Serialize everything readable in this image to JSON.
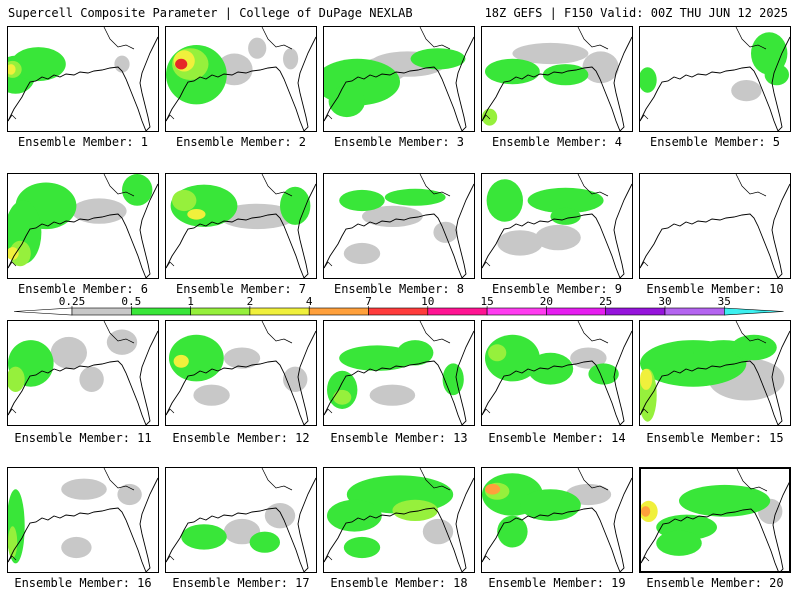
{
  "header": {
    "left": "Supercell Composite Parameter | College of DuPage NEXLAB",
    "right": "18Z GEFS | F150 Valid: 00Z THU JUN 12 2025"
  },
  "caption_prefix": "Ensemble Member:",
  "members": [
    {
      "label": "Ensemble Member: 1",
      "blobs": [
        [
          0.05,
          0.45,
          0.13,
          0.18,
          1
        ],
        [
          0.2,
          0.35,
          0.18,
          0.16,
          1
        ],
        [
          0.03,
          0.4,
          0.06,
          0.08,
          2
        ],
        [
          0.02,
          0.4,
          0.03,
          0.05,
          3
        ],
        [
          0.75,
          0.35,
          0.05,
          0.08,
          0
        ]
      ]
    },
    {
      "label": "Ensemble Member: 2",
      "blobs": [
        [
          0.2,
          0.45,
          0.2,
          0.28,
          1
        ],
        [
          0.45,
          0.4,
          0.12,
          0.15,
          0
        ],
        [
          0.16,
          0.35,
          0.12,
          0.15,
          2
        ],
        [
          0.12,
          0.32,
          0.07,
          0.1,
          3
        ],
        [
          0.1,
          0.35,
          0.04,
          0.05,
          5
        ],
        [
          0.6,
          0.2,
          0.06,
          0.1,
          0
        ],
        [
          0.82,
          0.3,
          0.05,
          0.1,
          0
        ]
      ]
    },
    {
      "label": "Ensemble Member: 3",
      "blobs": [
        [
          0.22,
          0.52,
          0.28,
          0.22,
          1
        ],
        [
          0.55,
          0.35,
          0.25,
          0.12,
          0
        ],
        [
          0.75,
          0.3,
          0.18,
          0.1,
          1
        ],
        [
          0.15,
          0.7,
          0.12,
          0.15,
          1
        ],
        [
          0.4,
          0.4,
          0.15,
          0.12,
          0
        ]
      ]
    },
    {
      "label": "Ensemble Member: 4",
      "blobs": [
        [
          0.2,
          0.42,
          0.18,
          0.12,
          1
        ],
        [
          0.55,
          0.45,
          0.15,
          0.1,
          1
        ],
        [
          0.78,
          0.38,
          0.12,
          0.15,
          0
        ],
        [
          0.05,
          0.85,
          0.05,
          0.08,
          2
        ],
        [
          0.45,
          0.25,
          0.25,
          0.1,
          0
        ]
      ]
    },
    {
      "label": "Ensemble Member: 5",
      "blobs": [
        [
          0.85,
          0.25,
          0.12,
          0.2,
          1
        ],
        [
          0.9,
          0.45,
          0.08,
          0.1,
          1
        ],
        [
          0.05,
          0.5,
          0.06,
          0.12,
          1
        ],
        [
          0.7,
          0.6,
          0.1,
          0.1,
          0
        ]
      ]
    },
    {
      "label": "Ensemble Member: 6",
      "blobs": [
        [
          0.25,
          0.3,
          0.2,
          0.22,
          1
        ],
        [
          0.1,
          0.55,
          0.12,
          0.3,
          1
        ],
        [
          0.08,
          0.75,
          0.07,
          0.12,
          2
        ],
        [
          0.03,
          0.75,
          0.04,
          0.06,
          3
        ],
        [
          0.6,
          0.35,
          0.18,
          0.12,
          0
        ],
        [
          0.85,
          0.15,
          0.1,
          0.15,
          1
        ]
      ]
    },
    {
      "label": "Ensemble Member: 7",
      "blobs": [
        [
          0.25,
          0.3,
          0.22,
          0.2,
          1
        ],
        [
          0.12,
          0.25,
          0.08,
          0.1,
          2
        ],
        [
          0.2,
          0.38,
          0.06,
          0.05,
          3
        ],
        [
          0.6,
          0.4,
          0.25,
          0.12,
          0
        ],
        [
          0.85,
          0.3,
          0.1,
          0.18,
          1
        ]
      ]
    },
    {
      "label": "Ensemble Member: 8",
      "blobs": [
        [
          0.25,
          0.25,
          0.15,
          0.1,
          1
        ],
        [
          0.6,
          0.22,
          0.2,
          0.08,
          1
        ],
        [
          0.45,
          0.4,
          0.2,
          0.1,
          0
        ],
        [
          0.25,
          0.75,
          0.12,
          0.1,
          0
        ],
        [
          0.8,
          0.55,
          0.08,
          0.1,
          0
        ]
      ]
    },
    {
      "label": "Ensemble Member: 9",
      "blobs": [
        [
          0.15,
          0.25,
          0.12,
          0.2,
          1
        ],
        [
          0.55,
          0.25,
          0.25,
          0.12,
          1
        ],
        [
          0.5,
          0.6,
          0.15,
          0.12,
          0
        ],
        [
          0.25,
          0.65,
          0.15,
          0.12,
          0
        ],
        [
          0.55,
          0.4,
          0.1,
          0.08,
          1
        ]
      ]
    },
    {
      "label": "Ensemble Member: 10",
      "blobs": []
    },
    {
      "label": "Ensemble Member: 11",
      "blobs": [
        [
          0.15,
          0.4,
          0.15,
          0.22,
          1
        ],
        [
          0.05,
          0.55,
          0.06,
          0.12,
          2
        ],
        [
          0.4,
          0.3,
          0.12,
          0.15,
          0
        ],
        [
          0.55,
          0.55,
          0.08,
          0.12,
          0
        ],
        [
          0.75,
          0.2,
          0.1,
          0.12,
          0
        ]
      ]
    },
    {
      "label": "Ensemble Member: 12",
      "blobs": [
        [
          0.2,
          0.35,
          0.18,
          0.22,
          1
        ],
        [
          0.1,
          0.38,
          0.05,
          0.06,
          3
        ],
        [
          0.5,
          0.35,
          0.12,
          0.1,
          0
        ],
        [
          0.3,
          0.7,
          0.12,
          0.1,
          0
        ],
        [
          0.85,
          0.55,
          0.08,
          0.12,
          0
        ]
      ]
    },
    {
      "label": "Ensemble Member: 13",
      "blobs": [
        [
          0.35,
          0.35,
          0.25,
          0.12,
          1
        ],
        [
          0.6,
          0.3,
          0.12,
          0.12,
          1
        ],
        [
          0.12,
          0.65,
          0.1,
          0.18,
          1
        ],
        [
          0.12,
          0.72,
          0.06,
          0.07,
          2
        ],
        [
          0.85,
          0.55,
          0.07,
          0.15,
          1
        ],
        [
          0.45,
          0.7,
          0.15,
          0.1,
          0
        ]
      ]
    },
    {
      "label": "Ensemble Member: 14",
      "blobs": [
        [
          0.2,
          0.35,
          0.18,
          0.22,
          1
        ],
        [
          0.45,
          0.45,
          0.15,
          0.15,
          1
        ],
        [
          0.1,
          0.3,
          0.06,
          0.08,
          2
        ],
        [
          0.7,
          0.35,
          0.12,
          0.1,
          0
        ],
        [
          0.8,
          0.5,
          0.1,
          0.1,
          1
        ]
      ]
    },
    {
      "label": "Ensemble Member: 15",
      "blobs": [
        [
          0.35,
          0.4,
          0.35,
          0.22,
          1
        ],
        [
          0.05,
          0.7,
          0.06,
          0.25,
          2
        ],
        [
          0.04,
          0.55,
          0.04,
          0.1,
          3
        ],
        [
          0.7,
          0.55,
          0.25,
          0.2,
          0
        ],
        [
          0.55,
          0.3,
          0.2,
          0.12,
          1
        ],
        [
          0.75,
          0.25,
          0.15,
          0.12,
          1
        ]
      ]
    },
    {
      "label": "Ensemble Member: 16",
      "blobs": [
        [
          0.05,
          0.55,
          0.06,
          0.35,
          1
        ],
        [
          0.03,
          0.7,
          0.03,
          0.15,
          2
        ],
        [
          0.5,
          0.2,
          0.15,
          0.1,
          0
        ],
        [
          0.8,
          0.25,
          0.08,
          0.1,
          0
        ],
        [
          0.45,
          0.75,
          0.1,
          0.1,
          0
        ]
      ]
    },
    {
      "label": "Ensemble Member: 17",
      "blobs": [
        [
          0.25,
          0.65,
          0.15,
          0.12,
          1
        ],
        [
          0.5,
          0.6,
          0.12,
          0.12,
          0
        ],
        [
          0.65,
          0.7,
          0.1,
          0.1,
          1
        ],
        [
          0.75,
          0.45,
          0.1,
          0.12,
          0
        ]
      ]
    },
    {
      "label": "Ensemble Member: 18",
      "blobs": [
        [
          0.5,
          0.25,
          0.35,
          0.18,
          1
        ],
        [
          0.2,
          0.45,
          0.18,
          0.15,
          1
        ],
        [
          0.6,
          0.4,
          0.15,
          0.1,
          2
        ],
        [
          0.25,
          0.75,
          0.12,
          0.1,
          1
        ],
        [
          0.75,
          0.6,
          0.1,
          0.12,
          0
        ]
      ]
    },
    {
      "label": "Ensemble Member: 19",
      "blobs": [
        [
          0.2,
          0.25,
          0.2,
          0.2,
          1
        ],
        [
          0.1,
          0.22,
          0.08,
          0.08,
          2
        ],
        [
          0.07,
          0.2,
          0.05,
          0.05,
          4
        ],
        [
          0.45,
          0.35,
          0.2,
          0.15,
          1
        ],
        [
          0.2,
          0.6,
          0.1,
          0.15,
          1
        ],
        [
          0.7,
          0.25,
          0.15,
          0.1,
          0
        ]
      ]
    },
    {
      "label": "Ensemble Member: 20",
      "blobs": [
        [
          0.55,
          0.3,
          0.3,
          0.15,
          1
        ],
        [
          0.05,
          0.4,
          0.06,
          0.1,
          3
        ],
        [
          0.03,
          0.4,
          0.03,
          0.05,
          4
        ],
        [
          0.3,
          0.55,
          0.2,
          0.12,
          1
        ],
        [
          0.25,
          0.7,
          0.15,
          0.12,
          1
        ],
        [
          0.85,
          0.4,
          0.08,
          0.12,
          0
        ]
      ]
    }
  ],
  "colorbar": {
    "labels": [
      "0.25",
      "0.5",
      "1",
      "2",
      "4",
      "7",
      "10",
      "15",
      "20",
      "25",
      "30",
      "35"
    ],
    "colors": [
      "#c8c8c8",
      "#39e639",
      "#96f03c",
      "#f0f03c",
      "#ffa03c",
      "#ff3c3c",
      "#ff1493",
      "#ff3cf0",
      "#e61ef0",
      "#9614dc",
      "#b464f0",
      "#3cf0f0"
    ]
  },
  "levels": [
    "#c8c8c8",
    "#39e639",
    "#96f03c",
    "#f0f03c",
    "#ffa03c",
    "#e62828"
  ]
}
